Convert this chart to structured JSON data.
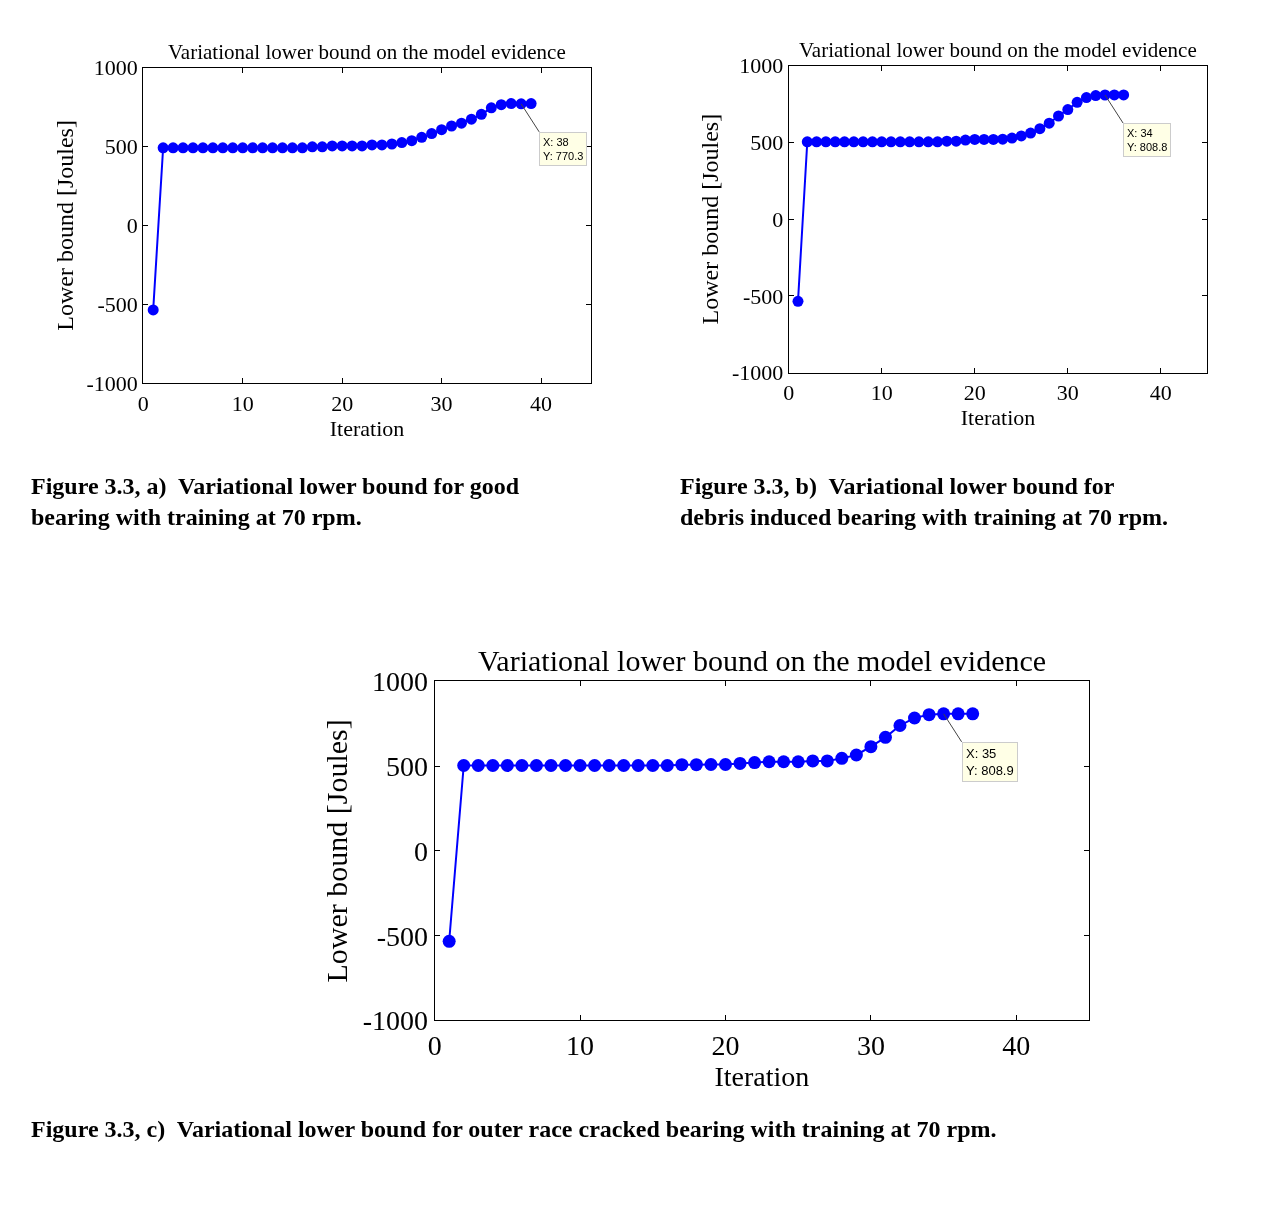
{
  "chart_data": [
    {
      "type": "line",
      "title": "Variational lower bound on the model evidence",
      "xlabel": "Iteration",
      "ylabel": "Lower bound [Joules]",
      "x": [
        1,
        2,
        3,
        4,
        5,
        6,
        7,
        8,
        9,
        10,
        11,
        12,
        13,
        14,
        15,
        16,
        17,
        18,
        19,
        20,
        21,
        22,
        23,
        24,
        25,
        26,
        27,
        28,
        29,
        30,
        31,
        32,
        33,
        34,
        35,
        36,
        37,
        38,
        39
      ],
      "series": [
        {
          "color": "#0000ff",
          "values": [
            -535,
            492,
            492,
            492,
            492,
            492,
            492,
            492,
            492,
            492,
            492,
            492,
            492,
            492,
            492,
            492,
            498,
            498,
            504,
            504,
            504,
            504,
            510,
            510,
            516,
            525,
            537,
            558,
            582,
            607,
            630,
            648,
            673,
            704,
            745,
            765,
            772,
            770.3,
            772
          ]
        }
      ],
      "xlim": [
        0,
        45
      ],
      "xticks": [
        0,
        10,
        20,
        30,
        40
      ],
      "ylim": [
        -1000,
        1000
      ],
      "yticks": [
        -1000,
        -500,
        0,
        500,
        1000
      ],
      "marker": "circle",
      "line_style": "solid",
      "annotations": [
        {
          "text": "X: 38\nY: 770.3",
          "x": 38,
          "y": 770.3
        },
        "Figure 3.3, a)  Variational lower bound for good bearing with training at 70 rpm."
      ]
    },
    {
      "type": "line",
      "title": "Variational lower bound on the model evidence",
      "xlabel": "Iteration",
      "ylabel": "Lower bound [Joules]",
      "x": [
        1,
        2,
        3,
        4,
        5,
        6,
        7,
        8,
        9,
        10,
        11,
        12,
        13,
        14,
        15,
        16,
        17,
        18,
        19,
        20,
        21,
        22,
        23,
        24,
        25,
        26,
        27,
        28,
        29,
        30,
        31,
        32,
        33,
        34,
        35,
        36
      ],
      "series": [
        {
          "color": "#0000ff",
          "values": [
            -536,
            504,
            504,
            504,
            504,
            504,
            504,
            504,
            504,
            504,
            504,
            504,
            504,
            504,
            504,
            504,
            508,
            508,
            515,
            519,
            519,
            519,
            521,
            528,
            542,
            561,
            589,
            625,
            672,
            714,
            761,
            792,
            805,
            808.8,
            809,
            809
          ]
        }
      ],
      "xlim": [
        0,
        45
      ],
      "xticks": [
        0,
        10,
        20,
        30,
        40
      ],
      "ylim": [
        -1000,
        1000
      ],
      "yticks": [
        -1000,
        -500,
        0,
        500,
        1000
      ],
      "marker": "circle",
      "line_style": "solid",
      "annotations": [
        {
          "text": "X: 34\nY: 808.8",
          "x": 34,
          "y": 808.8
        },
        "Figure 3.3, b)  Variational lower bound for debris induced bearing with training at 70 rpm."
      ]
    },
    {
      "type": "line",
      "title": "Variational lower bound on the model evidence",
      "xlabel": "Iteration",
      "ylabel": "Lower bound [Joules]",
      "x": [
        1,
        2,
        3,
        4,
        5,
        6,
        7,
        8,
        9,
        10,
        11,
        12,
        13,
        14,
        15,
        16,
        17,
        18,
        19,
        20,
        21,
        22,
        23,
        24,
        25,
        26,
        27,
        28,
        29,
        30,
        31,
        32,
        33,
        34,
        35,
        36,
        37
      ],
      "series": [
        {
          "color": "#0000ff",
          "values": [
            -533,
            504,
            504,
            504,
            504,
            504,
            504,
            504,
            504,
            504,
            504,
            504,
            504,
            504,
            504,
            504,
            509,
            509,
            510,
            510,
            516,
            521,
            526,
            526,
            526,
            531,
            531,
            546,
            566,
            615,
            670,
            740,
            784,
            804,
            808.9,
            809,
            809
          ]
        }
      ],
      "xlim": [
        0,
        45
      ],
      "xticks": [
        0,
        10,
        20,
        30,
        40
      ],
      "ylim": [
        -1000,
        1000
      ],
      "yticks": [
        -1000,
        -500,
        0,
        500,
        1000
      ],
      "marker": "circle",
      "line_style": "solid",
      "annotations": [
        {
          "text": "X: 35\nY: 808.9",
          "x": 35,
          "y": 808.9
        },
        "Figure 3.3, c)  Variational lower bound for outer race cracked bearing with training at 70 rpm."
      ]
    }
  ]
}
